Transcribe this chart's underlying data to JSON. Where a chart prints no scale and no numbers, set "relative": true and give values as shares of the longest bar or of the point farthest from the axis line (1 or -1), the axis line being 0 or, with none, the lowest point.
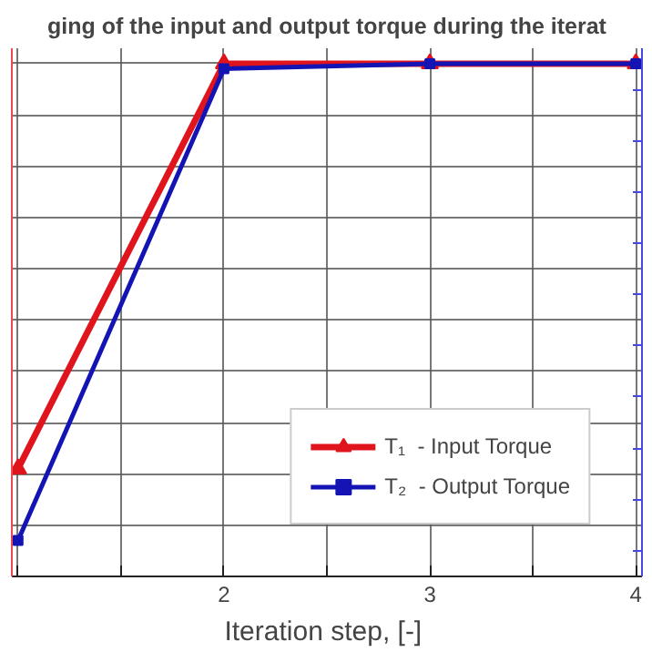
{
  "chart_data": {
    "type": "line",
    "title": "ging of the input and output torque during the iterat",
    "xlabel": "Iteration step,  [-]",
    "x": [
      1,
      2,
      3,
      4
    ],
    "xlim": [
      0.97,
      4.03
    ],
    "xticks": [
      {
        "value": 1,
        "label": null
      },
      {
        "value": 1.5,
        "label": null
      },
      2,
      {
        "value": 2.5,
        "label": null
      },
      3,
      {
        "value": 3.5,
        "label": null
      },
      4
    ],
    "relative": true,
    "grid": true,
    "legend": "bottom right",
    "series": [
      {
        "name": "T₁  - Input Torque",
        "color": "#e0141c",
        "marker": "triangle",
        "values": [
          0.21,
          1,
          1,
          1
        ]
      },
      {
        "name": "T₂  - Output Torque",
        "color": "#1414b4",
        "marker": "square",
        "values": [
          0.07,
          0.99,
          1,
          1
        ]
      }
    ]
  }
}
